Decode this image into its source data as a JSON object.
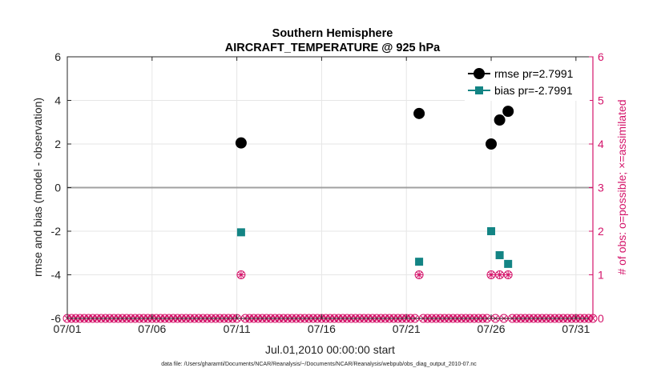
{
  "chart_data": {
    "type": "scatter",
    "title_line1": "Southern Hemisphere",
    "title_line2": "AIRCRAFT_TEMPERATURE @ 925 hPa",
    "ylabel": "rmse and bias (model - observation)",
    "ylabel_right": "# of obs: o=possible; ×=assimilated",
    "xlabel": "Jul.01,2010 00:00:00 start",
    "footer": "data file: /Users/gharamti/Documents/NCAR/Reanalysis/~/Documents/NCAR/Reanalysis/webpub/obs_diag_output_2010-07.nc",
    "x_ticks": [
      "07/01",
      "07/06",
      "07/11",
      "07/16",
      "07/21",
      "07/26",
      "07/31"
    ],
    "x_tick_days": [
      1,
      6,
      11,
      16,
      21,
      26,
      31
    ],
    "xlim": [
      1,
      32
    ],
    "ylim": [
      -6,
      6
    ],
    "y_ticks": [
      -6,
      -4,
      -2,
      0,
      2,
      4,
      6
    ],
    "ylim_right": [
      0,
      6
    ],
    "y_ticks_right": [
      0,
      1,
      2,
      3,
      4,
      5,
      6
    ],
    "grid": true,
    "legend_position": "top-right",
    "colors": {
      "rmse": "#000000",
      "bias": "#138484",
      "obs": "#d4146a",
      "zero_line": "#a0a0a0",
      "grid": "#e6e6e6"
    },
    "series": [
      {
        "name": "rmse pr=2.7991",
        "marker": "circle",
        "x": [
          11.25,
          21.75,
          26.0,
          26.5,
          27.0
        ],
        "y": [
          2.05,
          3.4,
          2.0,
          3.1,
          3.5
        ]
      },
      {
        "name": "bias pr=-2.7991",
        "marker": "square",
        "x": [
          11.25,
          21.75,
          26.0,
          26.5,
          27.0
        ],
        "y": [
          -2.05,
          -3.4,
          -2.0,
          -3.1,
          -3.5
        ]
      }
    ],
    "obs_count": {
      "x_spacing_days": 0.25,
      "nonzero_x": [
        11.25,
        21.75,
        26.0,
        26.5,
        27.0
      ],
      "nonzero_count": 1,
      "default_count": 0
    }
  }
}
